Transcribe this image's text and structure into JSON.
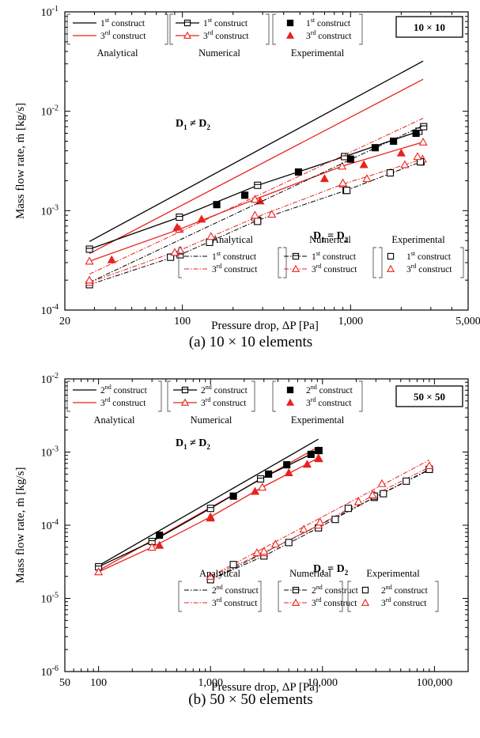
{
  "chart_data": [
    {
      "type": "line",
      "caption": "(a)   10 × 10 elements",
      "badge": "10 × 10",
      "xlabel": "Pressure drop, ΔP [Pa]",
      "ylabel": "Mass flow rate, ṁ [kg/s]",
      "x_scale": "log",
      "y_scale": "log",
      "xlim": [
        20,
        5000
      ],
      "ylim": [
        0.0001,
        0.1
      ],
      "x_ticks": [
        {
          "v": 20,
          "t": "20"
        },
        {
          "v": 100,
          "t": "100"
        },
        {
          "v": 1000,
          "t": "1,000"
        },
        {
          "v": 5000,
          "t": "5,000"
        }
      ],
      "y_ticks": [
        {
          "v": 0.0001,
          "b": "10",
          "e": "-4"
        },
        {
          "v": 0.001,
          "b": "10",
          "e": "-3"
        },
        {
          "v": 0.01,
          "b": "10",
          "e": "-2"
        },
        {
          "v": 0.1,
          "b": "10",
          "e": "-1"
        }
      ],
      "annotations": [
        {
          "main": "D",
          "sub": "1",
          "rest": " ≠  D",
          "sub2": "2",
          "pos": "upper"
        },
        {
          "main": "D",
          "sub": "1",
          "rest": " = D",
          "sub2": "2",
          "pos": "lower"
        }
      ],
      "legends": [
        {
          "group": "Analytical",
          "pos": "top",
          "entries": [
            {
              "ord": "1",
              "sup": "st",
              "text": " construct",
              "style": "line",
              "color": "#000000"
            },
            {
              "ord": "3",
              "sup": "rd",
              "text": " construct",
              "style": "line",
              "color": "#e8221d"
            }
          ]
        },
        {
          "group": "Numerical",
          "pos": "top",
          "entries": [
            {
              "ord": "1",
              "sup": "st",
              "text": " construct",
              "style": "sq-line",
              "color": "#000000"
            },
            {
              "ord": "3",
              "sup": "rd",
              "text": " construct",
              "style": "tri-line",
              "color": "#e8221d"
            }
          ]
        },
        {
          "group": "Experimental",
          "pos": "top",
          "entries": [
            {
              "ord": "1",
              "sup": "st",
              "text": " construct",
              "style": "sq-filled",
              "color": "#000000"
            },
            {
              "ord": "3",
              "sup": "rd",
              "text": " construct",
              "style": "tri-filled",
              "color": "#e8221d"
            }
          ]
        },
        {
          "group": "Analytical",
          "pos": "bottom",
          "entries": [
            {
              "ord": "1",
              "sup": "st",
              "text": " construct",
              "style": "dashdot",
              "color": "#000000"
            },
            {
              "ord": "3",
              "sup": "rd",
              "text": " construct",
              "style": "dashdot",
              "color": "#e8221d"
            }
          ]
        },
        {
          "group": "Numerical",
          "pos": "bottom",
          "entries": [
            {
              "ord": "1",
              "sup": "st",
              "text": " construct",
              "style": "sq-dashdot",
              "color": "#000000"
            },
            {
              "ord": "3",
              "sup": "rd",
              "text": " construct",
              "style": "tri-dashdot",
              "color": "#e8221d"
            }
          ]
        },
        {
          "group": "Experimental",
          "pos": "bottom",
          "entries": [
            {
              "ord": "1",
              "sup": "st",
              "text": " construct",
              "style": "sq-open",
              "color": "#000000"
            },
            {
              "ord": "3",
              "sup": "rd",
              "text": " construct",
              "style": "tri-open",
              "color": "#e8221d"
            }
          ]
        }
      ],
      "series": [
        {
          "name": "Analytical 1st construct, D1 ≠ D2",
          "style": "line",
          "color": "#000000",
          "x": [
            28,
            2700
          ],
          "y": [
            0.00049,
            0.032
          ]
        },
        {
          "name": "Analytical 3rd construct, D1 ≠ D2",
          "style": "line",
          "color": "#e8221d",
          "x": [
            28,
            2700
          ],
          "y": [
            0.00037,
            0.021
          ]
        },
        {
          "name": "Numerical 1st construct, D1 ≠ D2",
          "style": "sq-line",
          "color": "#000000",
          "x": [
            28,
            96,
            280,
            920,
            2550,
            2720
          ],
          "y": [
            0.00041,
            0.00086,
            0.0018,
            0.0035,
            0.0063,
            0.007
          ]
        },
        {
          "name": "Numerical 3rd construct, D1 ≠ D2",
          "style": "tri-line",
          "color": "#e8221d",
          "x": [
            28,
            96,
            270,
            890,
            2700
          ],
          "y": [
            0.00031,
            0.00065,
            0.0013,
            0.0028,
            0.0049
          ]
        },
        {
          "name": "Experimental 1st construct, D1 ≠ D2",
          "style": "sq-filled",
          "color": "#000000",
          "x": [
            160,
            235,
            490,
            1000,
            1400,
            1800,
            2450
          ],
          "y": [
            0.00115,
            0.00143,
            0.00245,
            0.0033,
            0.0043,
            0.005,
            0.006
          ]
        },
        {
          "name": "Experimental 3rd construct, D1 ≠ D2",
          "style": "tri-filled",
          "color": "#e8221d",
          "x": [
            38,
            93,
            130,
            290,
            700,
            1200,
            2000
          ],
          "y": [
            0.00032,
            0.00068,
            0.00082,
            0.00125,
            0.0021,
            0.0029,
            0.0038
          ]
        },
        {
          "name": "Analytical 1st construct, D1 = D2",
          "style": "dashdot",
          "color": "#000000",
          "x": [
            28,
            2700
          ],
          "y": [
            0.00019,
            0.0072
          ]
        },
        {
          "name": "Analytical 3rd construct, D1 = D2",
          "style": "dashdot",
          "color": "#e8221d",
          "x": [
            28,
            2700
          ],
          "y": [
            0.00023,
            0.0085
          ]
        },
        {
          "name": "Numerical 1st construct, D1 = D2",
          "style": "sq-dashdot",
          "color": "#000000",
          "x": [
            28,
            97,
            280,
            940,
            2620
          ],
          "y": [
            0.00018,
            0.00036,
            0.0008,
            0.0016,
            0.0031
          ]
        },
        {
          "name": "Numerical 3rd construct, D1 = D2",
          "style": "tri-dashdot",
          "color": "#e8221d",
          "x": [
            28,
            97,
            270,
            900,
            2680
          ],
          "y": [
            0.00019,
            0.0004,
            0.00085,
            0.00185,
            0.0033
          ]
        },
        {
          "name": "Experimental 1st construct, D1 = D2",
          "style": "sq-open",
          "color": "#000000",
          "x": [
            85,
            145,
            280,
            950,
            1720,
            2600
          ],
          "y": [
            0.00034,
            0.00048,
            0.00078,
            0.0016,
            0.0024,
            0.0031
          ]
        },
        {
          "name": "Experimental 3rd construct, D1 = D2",
          "style": "tri-open",
          "color": "#e8221d",
          "x": [
            28,
            90,
            148,
            270,
            340,
            900,
            1250,
            2100,
            2500
          ],
          "y": [
            0.0002,
            0.00038,
            0.00055,
            0.0009,
            0.00092,
            0.0019,
            0.0021,
            0.0029,
            0.0035
          ]
        }
      ]
    },
    {
      "type": "line",
      "caption": "(b) 50 × 50 elements",
      "badge": "50 × 50",
      "xlabel": "Pressure drop, ΔP [Pa]",
      "ylabel": "Mass flow rate, ṁ [kg/s]",
      "x_scale": "log",
      "y_scale": "log",
      "xlim": [
        50,
        200000
      ],
      "ylim": [
        1e-06,
        0.01
      ],
      "x_ticks": [
        {
          "v": 50,
          "t": "50"
        },
        {
          "v": 100,
          "t": "100"
        },
        {
          "v": 1000,
          "t": "1,000"
        },
        {
          "v": 10000,
          "t": "10,000"
        },
        {
          "v": 100000,
          "t": "100,000"
        }
      ],
      "y_ticks": [
        {
          "v": 1e-06,
          "b": "10",
          "e": "-6"
        },
        {
          "v": 1e-05,
          "b": "10",
          "e": "-5"
        },
        {
          "v": 0.0001,
          "b": "10",
          "e": "-4"
        },
        {
          "v": 0.001,
          "b": "10",
          "e": "-3"
        },
        {
          "v": 0.01,
          "b": "10",
          "e": "-2"
        }
      ],
      "annotations": [
        {
          "main": "D",
          "sub": "1",
          "rest": " ≠  D",
          "sub2": "2",
          "pos": "upper"
        },
        {
          "main": "D",
          "sub": "1",
          "rest": " = D",
          "sub2": "2",
          "pos": "lower"
        }
      ],
      "legends": [
        {
          "group": "Analytical",
          "pos": "top",
          "entries": [
            {
              "ord": "2",
              "sup": "nd",
              "text": " construct",
              "style": "line",
              "color": "#000000"
            },
            {
              "ord": "3",
              "sup": "rd",
              "text": " construct",
              "style": "line",
              "color": "#e8221d"
            }
          ]
        },
        {
          "group": "Numerical",
          "pos": "top",
          "entries": [
            {
              "ord": "2",
              "sup": "nd",
              "text": " construct",
              "style": "sq-line",
              "color": "#000000"
            },
            {
              "ord": "3",
              "sup": "rd",
              "text": " construct",
              "style": "tri-line",
              "color": "#e8221d"
            }
          ]
        },
        {
          "group": "Experimental",
          "pos": "top",
          "entries": [
            {
              "ord": "2",
              "sup": "nd",
              "text": " construct",
              "style": "sq-filled",
              "color": "#000000"
            },
            {
              "ord": "3",
              "sup": "rd",
              "text": " construct",
              "style": "tri-filled",
              "color": "#e8221d"
            }
          ]
        },
        {
          "group": "Analytical",
          "pos": "bottom",
          "entries": [
            {
              "ord": "2",
              "sup": "nd",
              "text": " construct",
              "style": "dashdot",
              "color": "#000000"
            },
            {
              "ord": "3",
              "sup": "rd",
              "text": " construct",
              "style": "dashdot",
              "color": "#e8221d"
            }
          ]
        },
        {
          "group": "Numerical",
          "pos": "bottom",
          "entries": [
            {
              "ord": "2",
              "sup": "nd",
              "text": " construct",
              "style": "sq-dashdot",
              "color": "#000000"
            },
            {
              "ord": "3",
              "sup": "rd",
              "text": " construct",
              "style": "tri-dashdot",
              "color": "#e8221d"
            }
          ]
        },
        {
          "group": "Experimental",
          "pos": "bottom",
          "entries": [
            {
              "ord": "2",
              "sup": "nd",
              "text": " construct",
              "style": "sq-open",
              "color": "#000000"
            },
            {
              "ord": "3",
              "sup": "rd",
              "text": " construct",
              "style": "tri-open",
              "color": "#e8221d"
            }
          ]
        }
      ],
      "series": [
        {
          "name": "Analytical 2nd construct, D1 ≠ D2",
          "style": "line",
          "color": "#000000",
          "x": [
            100,
            9200
          ],
          "y": [
            2.8e-05,
            0.0015
          ]
        },
        {
          "name": "Analytical 3rd construct, D1 ≠ D2",
          "style": "line",
          "color": "#e8221d",
          "x": [
            100,
            9200
          ],
          "y": [
            2.4e-05,
            0.00118
          ]
        },
        {
          "name": "Numerical 2nd construct, D1 ≠ D2",
          "style": "sq-line",
          "color": "#000000",
          "x": [
            100,
            300,
            1000,
            2800,
            9200
          ],
          "y": [
            2.7e-05,
            6e-05,
            0.00017,
            0.00043,
            0.00105
          ]
        },
        {
          "name": "Numerical 3rd construct, D1 ≠ D2",
          "style": "tri-line",
          "color": "#e8221d",
          "x": [
            100,
            300,
            1000,
            2900,
            9200
          ],
          "y": [
            2.3e-05,
            5e-05,
            0.00013,
            0.00033,
            0.00083
          ]
        },
        {
          "name": "Experimental 2nd construct, D1 ≠ D2",
          "style": "sq-filled",
          "color": "#000000",
          "x": [
            350,
            1600,
            3300,
            4800,
            7900,
            9300
          ],
          "y": [
            7.3e-05,
            0.00025,
            0.0005,
            0.00067,
            0.00093,
            0.00105
          ]
        },
        {
          "name": "Experimental 3rd construct, D1 ≠ D2",
          "style": "tri-filled",
          "color": "#e8221d",
          "x": [
            350,
            1000,
            2500,
            5000,
            7300,
            9300
          ],
          "y": [
            5.3e-05,
            0.000125,
            0.00029,
            0.00052,
            0.00068,
            0.00081
          ]
        },
        {
          "name": "Analytical 2nd construct, D1 = D2",
          "style": "dashdot",
          "color": "#000000",
          "x": [
            1000,
            90000
          ],
          "y": [
            1.8e-05,
            0.00057
          ]
        },
        {
          "name": "Analytical 3rd construct, D1 = D2",
          "style": "dashdot",
          "color": "#e8221d",
          "x": [
            1000,
            90000
          ],
          "y": [
            2e-05,
            0.00078
          ]
        },
        {
          "name": "Numerical 2nd construct, D1 = D2",
          "style": "sq-dashdot",
          "color": "#000000",
          "x": [
            1000,
            3000,
            9200,
            29000,
            90000
          ],
          "y": [
            1.8e-05,
            3.8e-05,
            9.2e-05,
            0.00024,
            0.00058
          ]
        },
        {
          "name": "Numerical 3rd construct, D1 = D2",
          "style": "tri-dashdot",
          "color": "#e8221d",
          "x": [
            1000,
            3000,
            9200,
            29000,
            90000
          ],
          "y": [
            2e-05,
            4.2e-05,
            0.0001,
            0.00026,
            0.00062
          ]
        },
        {
          "name": "Experimental 2nd construct, D1 = D2",
          "style": "sq-open",
          "color": "#000000",
          "x": [
            1600,
            5000,
            13000,
            17000,
            29000,
            35000,
            56000,
            90000
          ],
          "y": [
            2.9e-05,
            5.8e-05,
            0.00012,
            0.00017,
            0.00025,
            0.00027,
            0.0004,
            0.00058
          ]
        },
        {
          "name": "Experimental 3rd construct, D1 = D2",
          "style": "tri-open",
          "color": "#e8221d",
          "x": [
            2600,
            3000,
            3800,
            6800,
            9500,
            21000,
            28000,
            34000,
            90000
          ],
          "y": [
            4.2e-05,
            4.4e-05,
            5.5e-05,
            8.8e-05,
            0.00011,
            0.00021,
            0.00026,
            0.00037,
            0.00065
          ]
        }
      ]
    }
  ]
}
